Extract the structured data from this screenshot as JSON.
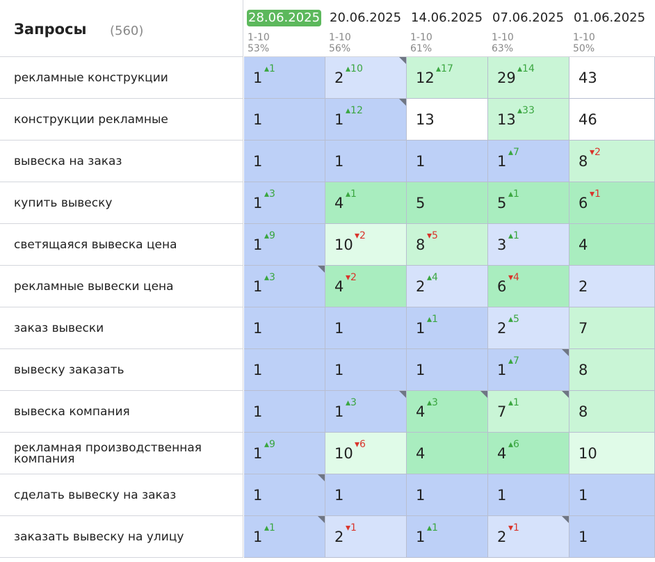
{
  "header": {
    "title": "Запросы",
    "count": "(560)"
  },
  "columns": [
    {
      "date": "28.06.2025",
      "range": "1-10",
      "pct": "53%",
      "active": true
    },
    {
      "date": "20.06.2025",
      "range": "1-10",
      "pct": "56%",
      "active": false
    },
    {
      "date": "14.06.2025",
      "range": "1-10",
      "pct": "61%",
      "active": false
    },
    {
      "date": "07.06.2025",
      "range": "1-10",
      "pct": "63%",
      "active": false
    },
    {
      "date": "01.06.2025",
      "range": "1-10",
      "pct": "50%",
      "active": false
    }
  ],
  "rows": [
    {
      "query": "рекламные конструкции",
      "cells": [
        {
          "pos": "1",
          "chg": "1",
          "dir": "up",
          "bg": "blue",
          "corner": false
        },
        {
          "pos": "2",
          "chg": "10",
          "dir": "up",
          "bg": "lblue",
          "corner": true
        },
        {
          "pos": "12",
          "chg": "17",
          "dir": "up",
          "bg": "lgreen",
          "corner": false
        },
        {
          "pos": "29",
          "chg": "14",
          "dir": "up",
          "bg": "lgreen",
          "corner": false
        },
        {
          "pos": "43",
          "chg": "",
          "dir": "",
          "bg": "white",
          "corner": false
        }
      ]
    },
    {
      "query": "конструкции рекламные",
      "cells": [
        {
          "pos": "1",
          "chg": "",
          "dir": "",
          "bg": "blue",
          "corner": false
        },
        {
          "pos": "1",
          "chg": "12",
          "dir": "up",
          "bg": "blue",
          "corner": true
        },
        {
          "pos": "13",
          "chg": "",
          "dir": "",
          "bg": "white",
          "corner": false
        },
        {
          "pos": "13",
          "chg": "33",
          "dir": "up",
          "bg": "lgreen",
          "corner": false
        },
        {
          "pos": "46",
          "chg": "",
          "dir": "",
          "bg": "white",
          "corner": false
        }
      ]
    },
    {
      "query": "вывеска на заказ",
      "cells": [
        {
          "pos": "1",
          "chg": "",
          "dir": "",
          "bg": "blue",
          "corner": false
        },
        {
          "pos": "1",
          "chg": "",
          "dir": "",
          "bg": "blue",
          "corner": false
        },
        {
          "pos": "1",
          "chg": "",
          "dir": "",
          "bg": "blue",
          "corner": false
        },
        {
          "pos": "1",
          "chg": "7",
          "dir": "up",
          "bg": "blue",
          "corner": false
        },
        {
          "pos": "8",
          "chg": "2",
          "dir": "down",
          "bg": "lgreen",
          "corner": false
        }
      ]
    },
    {
      "query": "купить вывеску",
      "cells": [
        {
          "pos": "1",
          "chg": "3",
          "dir": "up",
          "bg": "blue",
          "corner": false
        },
        {
          "pos": "4",
          "chg": "1",
          "dir": "up",
          "bg": "green",
          "corner": false
        },
        {
          "pos": "5",
          "chg": "",
          "dir": "",
          "bg": "green",
          "corner": false
        },
        {
          "pos": "5",
          "chg": "1",
          "dir": "up",
          "bg": "green",
          "corner": false
        },
        {
          "pos": "6",
          "chg": "1",
          "dir": "down",
          "bg": "green",
          "corner": false
        }
      ]
    },
    {
      "query": "светящаяся вывеска цена",
      "cells": [
        {
          "pos": "1",
          "chg": "9",
          "dir": "up",
          "bg": "blue",
          "corner": false
        },
        {
          "pos": "10",
          "chg": "2",
          "dir": "down",
          "bg": "pale",
          "corner": false
        },
        {
          "pos": "8",
          "chg": "5",
          "dir": "down",
          "bg": "lgreen",
          "corner": false
        },
        {
          "pos": "3",
          "chg": "1",
          "dir": "up",
          "bg": "lblue",
          "corner": false
        },
        {
          "pos": "4",
          "chg": "",
          "dir": "",
          "bg": "green",
          "corner": false
        }
      ]
    },
    {
      "query": "рекламные вывески цена",
      "cells": [
        {
          "pos": "1",
          "chg": "3",
          "dir": "up",
          "bg": "blue",
          "corner": true
        },
        {
          "pos": "4",
          "chg": "2",
          "dir": "down",
          "bg": "green",
          "corner": false
        },
        {
          "pos": "2",
          "chg": "4",
          "dir": "up",
          "bg": "lblue",
          "corner": false
        },
        {
          "pos": "6",
          "chg": "4",
          "dir": "down",
          "bg": "green",
          "corner": false
        },
        {
          "pos": "2",
          "chg": "",
          "dir": "",
          "bg": "lblue",
          "corner": false
        }
      ]
    },
    {
      "query": "заказ вывески",
      "cells": [
        {
          "pos": "1",
          "chg": "",
          "dir": "",
          "bg": "blue",
          "corner": false
        },
        {
          "pos": "1",
          "chg": "",
          "dir": "",
          "bg": "blue",
          "corner": false
        },
        {
          "pos": "1",
          "chg": "1",
          "dir": "up",
          "bg": "blue",
          "corner": false
        },
        {
          "pos": "2",
          "chg": "5",
          "dir": "up",
          "bg": "lblue",
          "corner": false
        },
        {
          "pos": "7",
          "chg": "",
          "dir": "",
          "bg": "lgreen",
          "corner": false
        }
      ]
    },
    {
      "query": "вывеску заказать",
      "cells": [
        {
          "pos": "1",
          "chg": "",
          "dir": "",
          "bg": "blue",
          "corner": false
        },
        {
          "pos": "1",
          "chg": "",
          "dir": "",
          "bg": "blue",
          "corner": false
        },
        {
          "pos": "1",
          "chg": "",
          "dir": "",
          "bg": "blue",
          "corner": false
        },
        {
          "pos": "1",
          "chg": "7",
          "dir": "up",
          "bg": "blue",
          "corner": true
        },
        {
          "pos": "8",
          "chg": "",
          "dir": "",
          "bg": "lgreen",
          "corner": false
        }
      ]
    },
    {
      "query": "вывеска компания",
      "cells": [
        {
          "pos": "1",
          "chg": "",
          "dir": "",
          "bg": "blue",
          "corner": false
        },
        {
          "pos": "1",
          "chg": "3",
          "dir": "up",
          "bg": "blue",
          "corner": true
        },
        {
          "pos": "4",
          "chg": "3",
          "dir": "up",
          "bg": "green",
          "corner": true
        },
        {
          "pos": "7",
          "chg": "1",
          "dir": "up",
          "bg": "lgreen",
          "corner": true
        },
        {
          "pos": "8",
          "chg": "",
          "dir": "",
          "bg": "lgreen",
          "corner": false
        }
      ]
    },
    {
      "query": "рекламная производственная компания",
      "cells": [
        {
          "pos": "1",
          "chg": "9",
          "dir": "up",
          "bg": "blue",
          "corner": false
        },
        {
          "pos": "10",
          "chg": "6",
          "dir": "down",
          "bg": "pale",
          "corner": false
        },
        {
          "pos": "4",
          "chg": "",
          "dir": "",
          "bg": "green",
          "corner": false
        },
        {
          "pos": "4",
          "chg": "6",
          "dir": "up",
          "bg": "green",
          "corner": false
        },
        {
          "pos": "10",
          "chg": "",
          "dir": "",
          "bg": "pale",
          "corner": false
        }
      ]
    },
    {
      "query": "сделать вывеску на заказ",
      "cells": [
        {
          "pos": "1",
          "chg": "",
          "dir": "",
          "bg": "blue",
          "corner": true
        },
        {
          "pos": "1",
          "chg": "",
          "dir": "",
          "bg": "blue",
          "corner": false
        },
        {
          "pos": "1",
          "chg": "",
          "dir": "",
          "bg": "blue",
          "corner": false
        },
        {
          "pos": "1",
          "chg": "",
          "dir": "",
          "bg": "blue",
          "corner": false
        },
        {
          "pos": "1",
          "chg": "",
          "dir": "",
          "bg": "blue",
          "corner": false
        }
      ]
    },
    {
      "query": "заказать вывеску на улицу",
      "cells": [
        {
          "pos": "1",
          "chg": "1",
          "dir": "up",
          "bg": "blue",
          "corner": true
        },
        {
          "pos": "2",
          "chg": "1",
          "dir": "down",
          "bg": "lblue",
          "corner": false
        },
        {
          "pos": "1",
          "chg": "1",
          "dir": "up",
          "bg": "blue",
          "corner": false
        },
        {
          "pos": "2",
          "chg": "1",
          "dir": "down",
          "bg": "lblue",
          "corner": true
        },
        {
          "pos": "1",
          "chg": "",
          "dir": "",
          "bg": "blue",
          "corner": false
        }
      ]
    }
  ],
  "colors": {
    "active_date": "#5cb85c",
    "up": "#3aa640",
    "down": "#d9342b"
  }
}
